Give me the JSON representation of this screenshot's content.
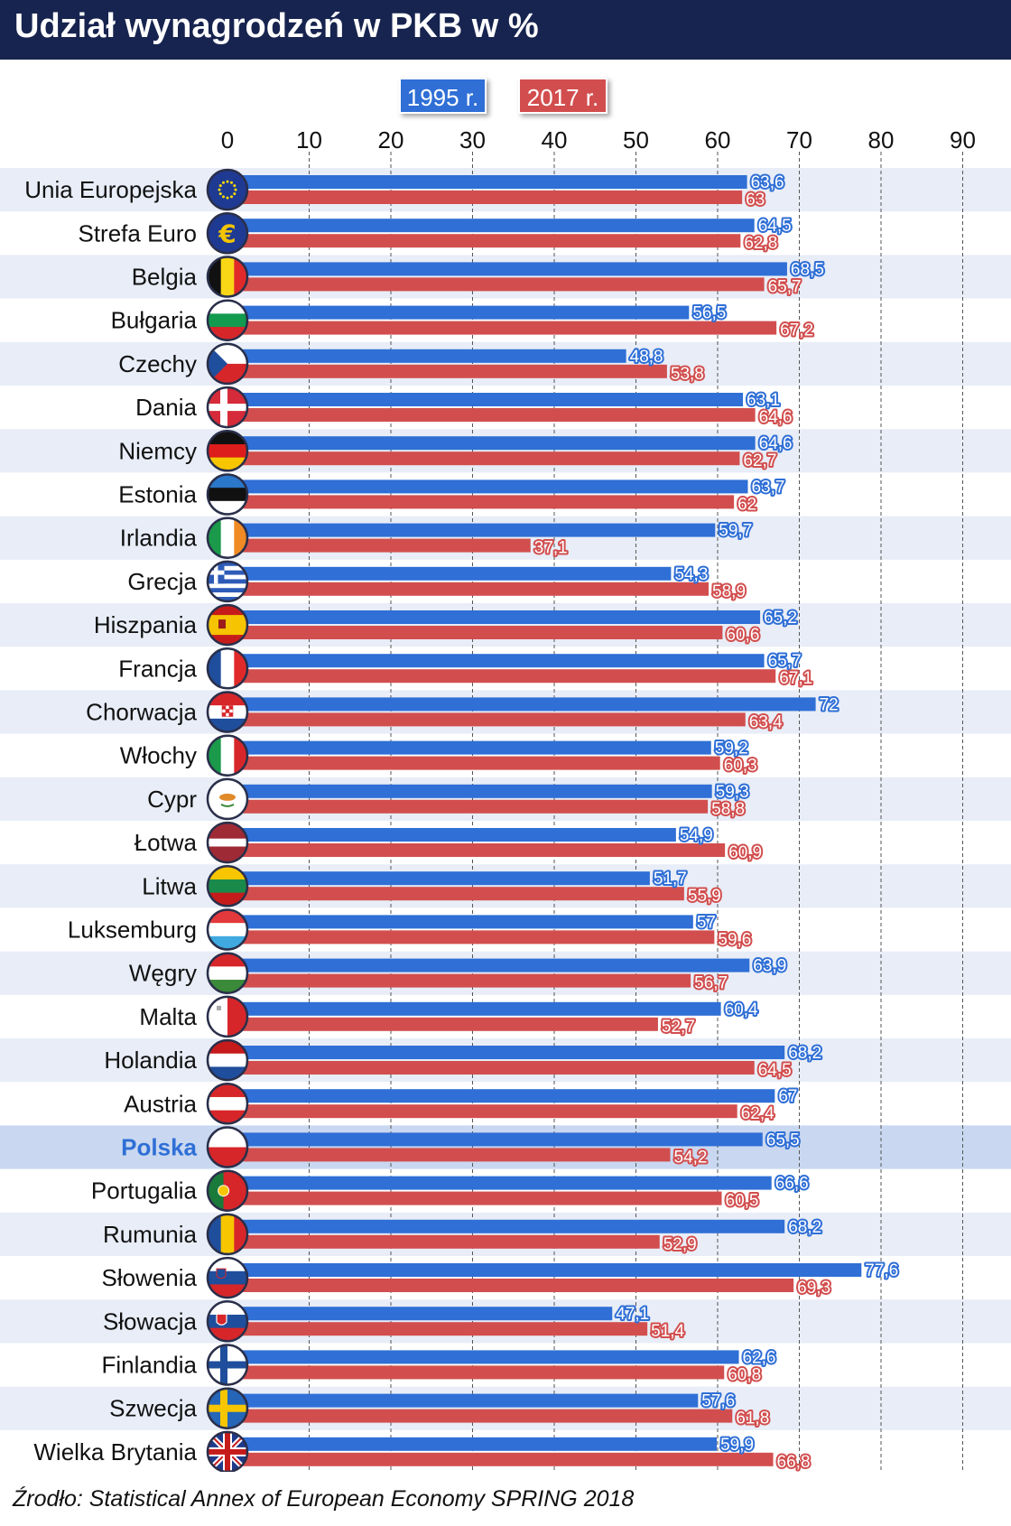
{
  "title": "Udział  wynagrodzeń w PKB w %",
  "source": "Źrodło: Statistical Annex of European Economy SPRING 2018",
  "colors": {
    "series_1995": "#2f6fd6",
    "series_2017": "#d24e4e",
    "header": "#17244f",
    "stripe": "#e8edf7",
    "highlight": "#c9d8f0",
    "highlight_text": "#2f6fd6"
  },
  "chart_data": {
    "type": "bar",
    "orientation": "horizontal",
    "title": "Udział  wynagrodzeń w PKB w %",
    "xlim": [
      0,
      90
    ],
    "ticks": [
      "0",
      "10",
      "20",
      "30",
      "40",
      "50",
      "60",
      "70",
      "80",
      "90"
    ],
    "highlight": "Polska",
    "categories": [
      "Unia Europejska",
      "Strefa Euro",
      "Belgia",
      "Bułgaria",
      "Czechy",
      "Dania",
      "Niemcy",
      "Estonia",
      "Irlandia",
      "Grecja",
      "Hiszpania",
      "Francja",
      "Chorwacja",
      "Włochy",
      "Cypr",
      "Łotwa",
      "Litwa",
      "Luksemburg",
      "Węgry",
      "Malta",
      "Holandia",
      "Austria",
      "Polska",
      "Portugalia",
      "Rumunia",
      "Słowenia",
      "Słowacja",
      "Finlandia",
      "Szwecja",
      "Wielka Brytania"
    ],
    "series": [
      {
        "name": "1995 r.",
        "color": "#2f6fd6",
        "values": [
          63.6,
          64.5,
          68.5,
          56.5,
          48.8,
          63.1,
          64.6,
          63.7,
          59.7,
          54.3,
          65.2,
          65.7,
          72,
          59.2,
          59.3,
          54.9,
          51.7,
          57,
          63.9,
          60.4,
          68.2,
          67,
          65.5,
          66.6,
          68.2,
          77.6,
          47.1,
          62.6,
          57.6,
          59.9
        ],
        "labels": [
          "63,6",
          "64,5",
          "68,5",
          "56,5",
          "48,8",
          "63,1",
          "64,6",
          "63,7",
          "59,7",
          "54,3",
          "65,2",
          "65,7",
          "72",
          "59,2",
          "59,3",
          "54,9",
          "51,7",
          "57",
          "63,9",
          "60,4",
          "68,2",
          "67",
          "65,5",
          "66,6",
          "68,2",
          "77,6",
          "47,1",
          "62,6",
          "57,6",
          "59,9"
        ]
      },
      {
        "name": "2017 r.",
        "color": "#d24e4e",
        "values": [
          63,
          62.8,
          65.7,
          67.2,
          53.8,
          64.6,
          62.7,
          62,
          37.1,
          58.9,
          60.6,
          67.1,
          63.4,
          60.3,
          58.8,
          60.9,
          55.9,
          59.6,
          56.7,
          52.7,
          64.5,
          62.4,
          54.2,
          60.5,
          52.9,
          69.3,
          51.4,
          60.8,
          61.8,
          66.8
        ],
        "labels": [
          "63",
          "62,8",
          "65,7",
          "67,2",
          "53,8",
          "64,6",
          "62,7",
          "62",
          "37,1",
          "58,9",
          "60,6",
          "67,1",
          "63,4",
          "60,3",
          "58,8",
          "60,9",
          "55,9",
          "59,6",
          "56,7",
          "52,7",
          "64,5",
          "62,4",
          "54,2",
          "60,5",
          "52,9",
          "69,3",
          "51,4",
          "60,8",
          "61,8",
          "66,8"
        ]
      }
    ]
  },
  "flags": [
    "eu",
    "euro",
    "be",
    "bg",
    "cz",
    "dk",
    "de",
    "ee",
    "ie",
    "gr",
    "es",
    "fr",
    "hr",
    "it",
    "cy",
    "lv",
    "lt",
    "lu",
    "hu",
    "mt",
    "nl",
    "at",
    "pl",
    "pt",
    "ro",
    "si",
    "sk",
    "fi",
    "se",
    "gb"
  ]
}
